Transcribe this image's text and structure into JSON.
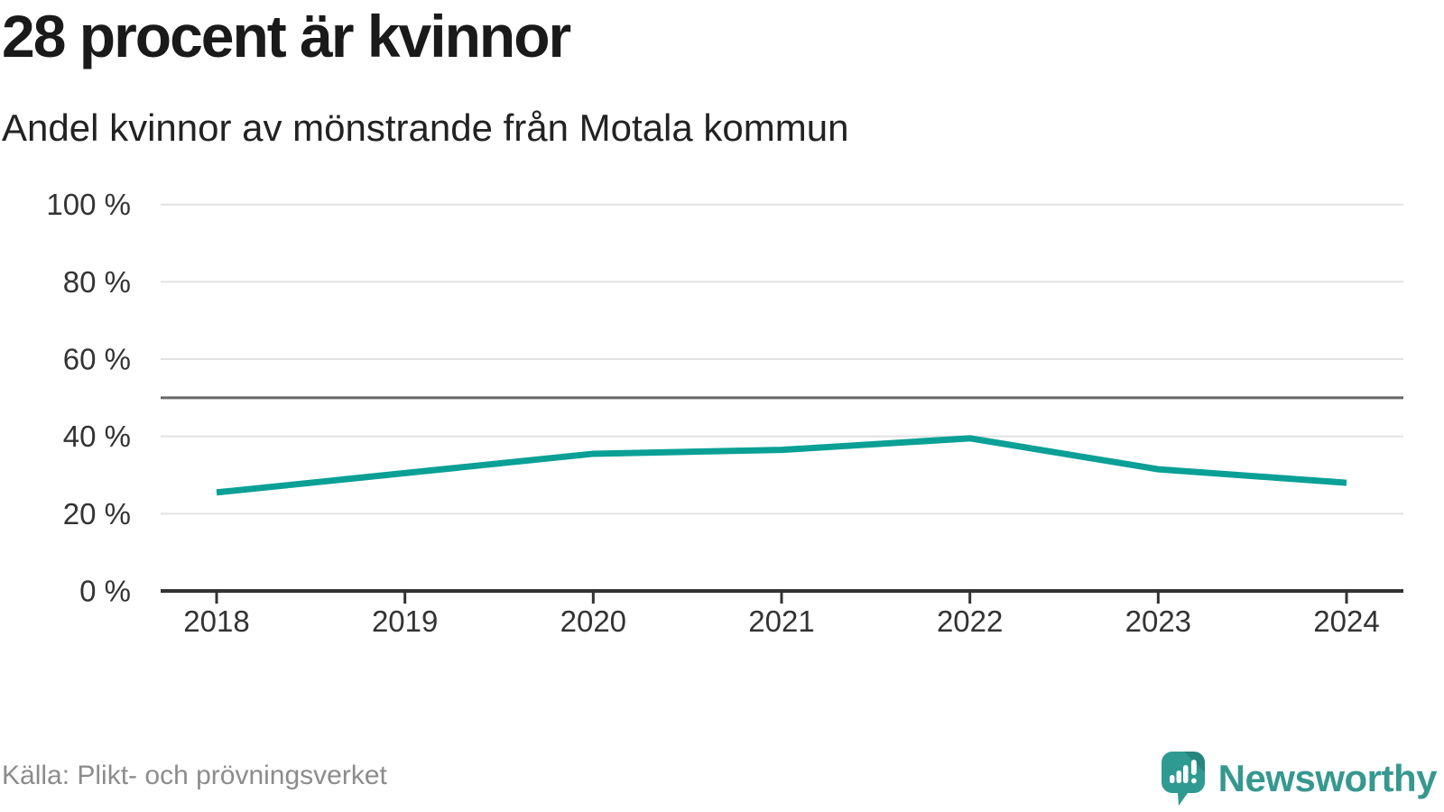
{
  "header": {
    "title": "28 procent är kvinnor",
    "subtitle": "Andel kvinnor av mönstrande från Motala kommun"
  },
  "footer": {
    "source": "Källa: Plikt- och prövningsverket",
    "brand": "Newsworthy",
    "brand_icon": "newsworthy-speech-bubble-bar-chart-icon"
  },
  "colors": {
    "line": "#0aa096",
    "grid": "#e2e2e2",
    "reference_line": "#666666",
    "axis": "#333333",
    "tick_text": "#333333",
    "muted_text": "#8c8c8c",
    "brand": "#36988f",
    "title_text": "#1a1a1a"
  },
  "chart_data": {
    "type": "line",
    "x": [
      2018,
      2019,
      2020,
      2021,
      2022,
      2023,
      2024
    ],
    "series": [
      {
        "name": "Andel kvinnor av mönstrande",
        "values": [
          25.5,
          30.5,
          35.5,
          36.5,
          39.5,
          31.5,
          28
        ]
      }
    ],
    "title": "28 procent är kvinnor",
    "subtitle": "Andel kvinnor av mönstrande från Motala kommun",
    "xlabel": "",
    "ylabel": "",
    "ylim": [
      0,
      100
    ],
    "yticks": [
      0,
      20,
      40,
      60,
      80,
      100
    ],
    "ytick_format": "{v} %",
    "reference_line": 50,
    "grid": "horizontal",
    "legend": "none",
    "line_width": 7
  }
}
